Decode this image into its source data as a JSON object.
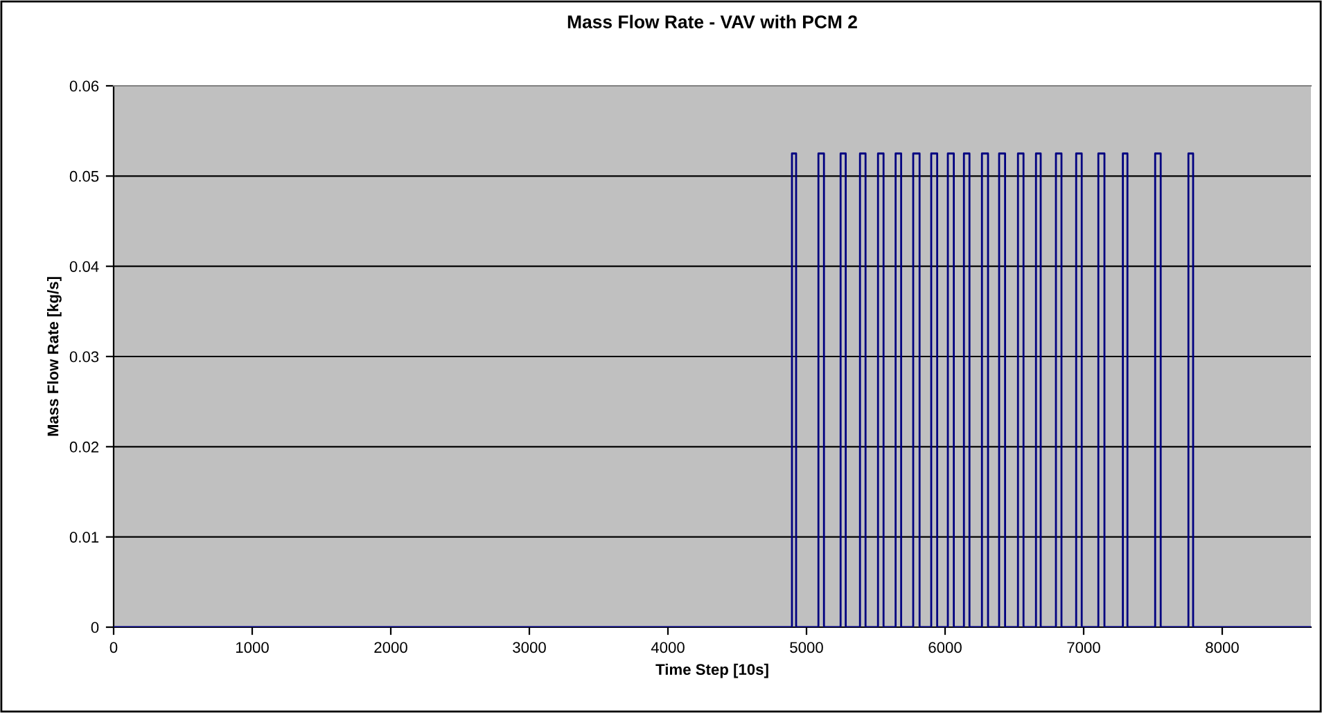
{
  "chart_data": {
    "type": "line",
    "title": "Mass Flow Rate - VAV with PCM 2",
    "xlabel": "Time Step [10s]",
    "ylabel": "Mass Flow Rate [kg/s]",
    "series": [
      {
        "color": "#000080",
        "x": [
          0,
          4895,
          4895,
          4925,
          4925,
          5086,
          5086,
          5126,
          5126,
          5246,
          5246,
          5283,
          5283,
          5386,
          5386,
          5426,
          5426,
          5516,
          5516,
          5556,
          5556,
          5643,
          5643,
          5683,
          5683,
          5770,
          5770,
          5816,
          5816,
          5900,
          5900,
          5943,
          5943,
          6020,
          6020,
          6063,
          6063,
          6136,
          6136,
          6176,
          6176,
          6266,
          6266,
          6310,
          6310,
          6390,
          6390,
          6433,
          6433,
          6526,
          6526,
          6566,
          6566,
          6656,
          6656,
          6690,
          6690,
          6800,
          6800,
          6840,
          6840,
          6946,
          6946,
          6986,
          6986,
          7106,
          7106,
          7150,
          7150,
          7283,
          7283,
          7316,
          7316,
          7516,
          7516,
          7556,
          7556,
          7756,
          7756,
          7790,
          7790,
          8640
        ],
        "values": [
          0,
          0,
          0.0525,
          0.0525,
          0,
          0,
          0.0525,
          0.0525,
          0,
          0,
          0.0525,
          0.0525,
          0,
          0,
          0.0525,
          0.0525,
          0,
          0,
          0.0525,
          0.0525,
          0,
          0,
          0.0525,
          0.0525,
          0,
          0,
          0.0525,
          0.0525,
          0,
          0,
          0.0525,
          0.0525,
          0,
          0,
          0.0525,
          0.0525,
          0,
          0,
          0.0525,
          0.0525,
          0,
          0,
          0.0525,
          0.0525,
          0,
          0,
          0.0525,
          0.0525,
          0,
          0,
          0.0525,
          0.0525,
          0,
          0,
          0.0525,
          0.0525,
          0,
          0,
          0.0525,
          0.0525,
          0,
          0,
          0.0525,
          0.0525,
          0,
          0,
          0.0525,
          0.0525,
          0,
          0,
          0.0525,
          0.0525,
          0,
          0,
          0.0525,
          0.0525,
          0,
          0,
          0.0525,
          0.0525,
          0,
          0
        ]
      }
    ],
    "xlim": [
      0,
      8640
    ],
    "xticks": [
      0,
      1000,
      2000,
      3000,
      4000,
      5000,
      6000,
      7000,
      8000
    ],
    "ylim": [
      0,
      0.06
    ],
    "yticks": [
      {
        "value": 0,
        "label": "0"
      },
      0.01,
      0.02,
      0.03,
      0.04,
      0.05,
      0.06
    ],
    "grid": "y",
    "legend": false,
    "marker": "none",
    "line_style": "solid"
  }
}
